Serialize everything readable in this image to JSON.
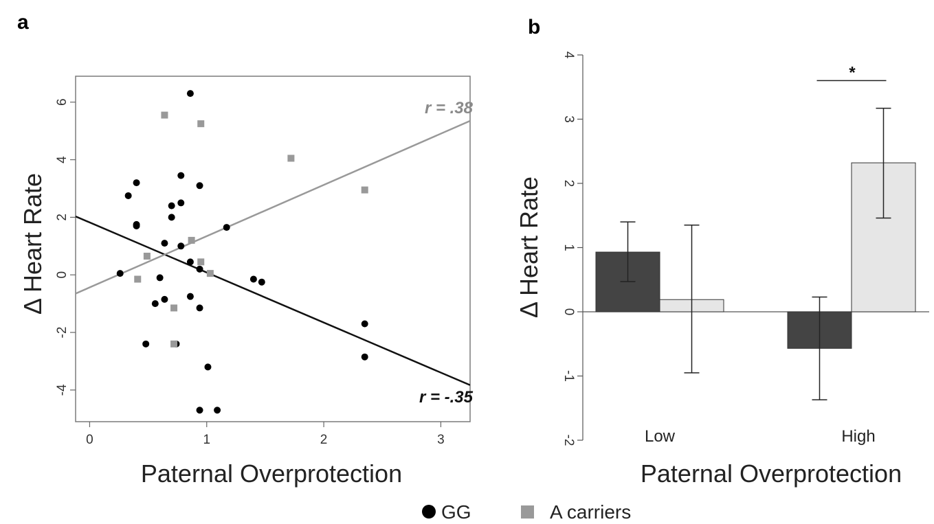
{
  "chart_data": [
    {
      "panel": "a",
      "type": "scatter",
      "xlabel": "Paternal Overprotection",
      "ylabel": "Δ Heart Rate",
      "xlim": [
        -0.12,
        3.25
      ],
      "ylim": [
        -5.1,
        6.9
      ],
      "xticks": [
        0,
        1,
        2,
        3
      ],
      "yticks": [
        -4,
        -2,
        0,
        2,
        4,
        6
      ],
      "grid": false,
      "series": [
        {
          "name": "GG",
          "color": "#000000",
          "marker": "circle",
          "points": [
            [
              0.26,
              0.05
            ],
            [
              0.33,
              2.75
            ],
            [
              0.4,
              1.75
            ],
            [
              0.4,
              1.7
            ],
            [
              0.4,
              3.2
            ],
            [
              0.48,
              -2.4
            ],
            [
              0.56,
              -1.0
            ],
            [
              0.6,
              -0.1
            ],
            [
              0.64,
              -0.85
            ],
            [
              0.64,
              1.1
            ],
            [
              0.7,
              2.4
            ],
            [
              0.7,
              2.0
            ],
            [
              0.74,
              -2.4
            ],
            [
              0.78,
              2.5
            ],
            [
              0.78,
              3.45
            ],
            [
              0.78,
              1.0
            ],
            [
              0.86,
              0.45
            ],
            [
              0.86,
              6.3
            ],
            [
              0.86,
              -0.75
            ],
            [
              0.94,
              3.1
            ],
            [
              0.94,
              0.2
            ],
            [
              0.94,
              -1.15
            ],
            [
              0.94,
              -4.7
            ],
            [
              1.01,
              -3.2
            ],
            [
              1.09,
              -4.7
            ],
            [
              1.17,
              1.65
            ],
            [
              1.4,
              -0.15
            ],
            [
              1.47,
              -0.25
            ],
            [
              2.35,
              -1.7
            ],
            [
              2.35,
              -2.85
            ]
          ]
        },
        {
          "name": "A carriers",
          "color": "#999999",
          "marker": "square",
          "points": [
            [
              0.41,
              -0.15
            ],
            [
              0.49,
              0.65
            ],
            [
              0.64,
              5.55
            ],
            [
              0.72,
              -1.15
            ],
            [
              0.72,
              -2.4
            ],
            [
              0.87,
              1.2
            ],
            [
              0.95,
              5.25
            ],
            [
              0.95,
              0.45
            ],
            [
              1.03,
              0.05
            ],
            [
              1.72,
              4.05
            ],
            [
              2.35,
              2.95
            ]
          ]
        }
      ],
      "fit_lines": [
        {
          "series": "GG",
          "color": "#111111",
          "x": [
            -0.12,
            3.25
          ],
          "y": [
            2.03,
            -3.83
          ],
          "label": "r = -.35"
        },
        {
          "series": "A carriers",
          "color": "#999999",
          "x": [
            -0.12,
            3.25
          ],
          "y": [
            -0.65,
            5.35
          ],
          "label": "r = .38"
        }
      ]
    },
    {
      "panel": "b",
      "type": "bar",
      "xlabel": "Paternal Overprotection",
      "ylabel": "Δ Heart Rate",
      "ylim": [
        -2,
        4
      ],
      "yticks": [
        -2,
        -1,
        0,
        1,
        2,
        3,
        4
      ],
      "categories": [
        "Low",
        "High"
      ],
      "series": [
        {
          "name": "GG",
          "color": "#444444",
          "values": [
            0.93,
            -0.57
          ],
          "err_low": [
            0.47,
            -1.37
          ],
          "err_high": [
            1.4,
            0.23
          ]
        },
        {
          "name": "A carriers",
          "color": "#e6e6e6",
          "values": [
            0.19,
            2.32
          ],
          "err_low": [
            -0.95,
            1.46
          ],
          "err_high": [
            1.35,
            3.17
          ]
        }
      ],
      "significance": [
        {
          "category": "High",
          "label": "*",
          "y": 3.6
        }
      ]
    }
  ],
  "figure": {
    "panel_a_label": "a",
    "panel_b_label": "b",
    "a_xlabel": "Paternal Overprotection",
    "a_ylabel": "Δ Heart Rate",
    "b_xlabel": "Paternal Overprotection",
    "b_ylabel": "Δ Heart Rate",
    "a_x_ticks": [
      "0",
      "1",
      "2",
      "3"
    ],
    "a_y_ticks": [
      "-4",
      "-2",
      "0",
      "2",
      "4",
      "6"
    ],
    "b_y_ticks": [
      "-2",
      "-1",
      "0",
      "1",
      "2",
      "3",
      "4"
    ],
    "b_categories": [
      "Low",
      "High"
    ],
    "r_gg": "r = -.35",
    "r_a": "r = .38",
    "significance_label": "*",
    "legend_gg": "GG",
    "legend_a": "A carriers"
  }
}
